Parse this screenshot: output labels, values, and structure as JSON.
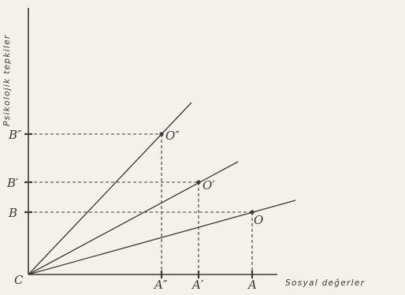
{
  "y_axis_label": "Psikolojik tepkiler",
  "x_axis_label": "Sosyal değerler",
  "origin_label": "C",
  "points": [
    {
      "label": "O″"
    },
    {
      "label": "O′"
    },
    {
      "label": "O"
    }
  ],
  "y_marks": [
    {
      "label": "B″"
    },
    {
      "label": "B′"
    },
    {
      "label": "B"
    }
  ],
  "x_marks": [
    {
      "label": "A″"
    },
    {
      "label": "A′"
    },
    {
      "label": "A"
    }
  ],
  "colors": {
    "ink": "#3a3a3a",
    "paper": "#f4f1ea"
  }
}
